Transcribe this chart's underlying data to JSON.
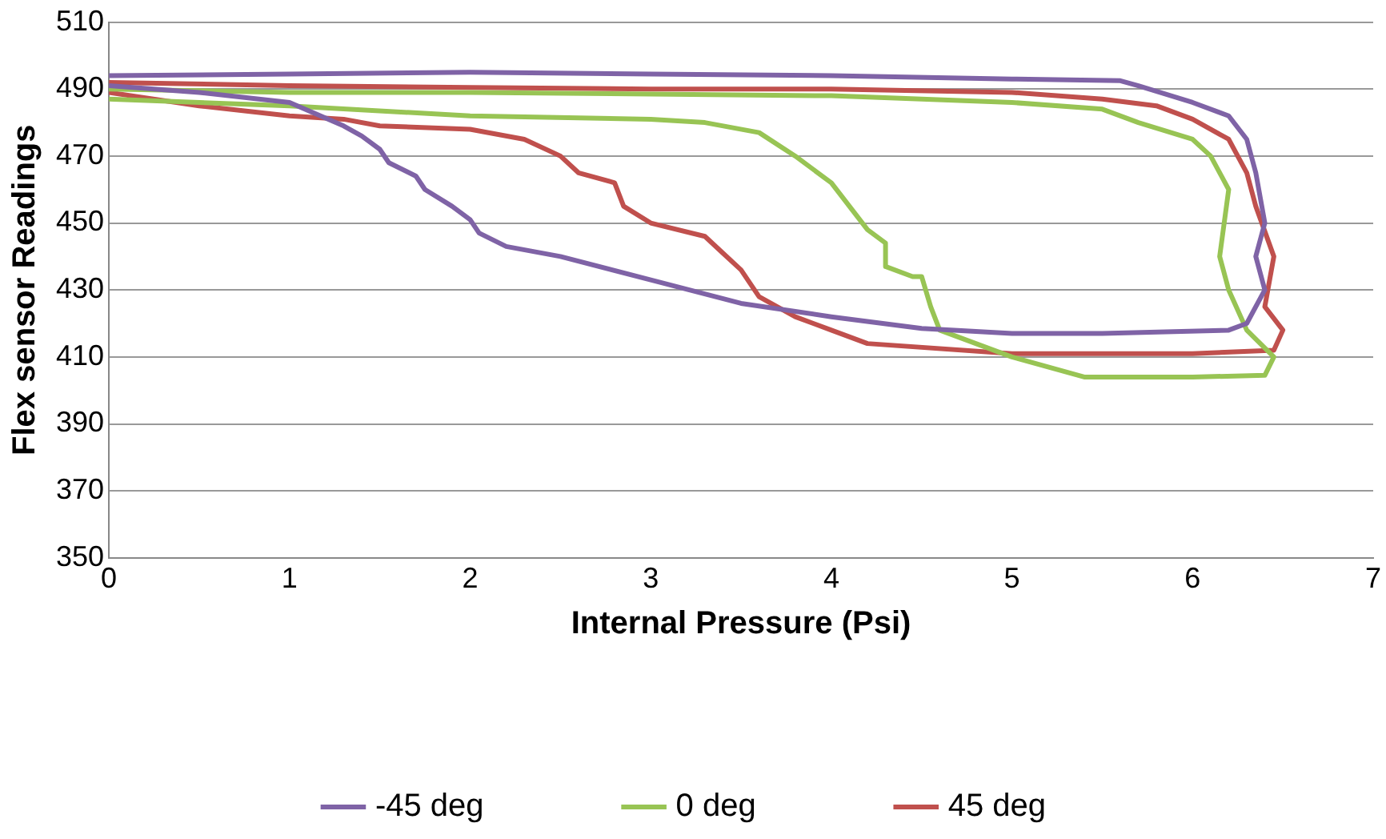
{
  "chart_data": {
    "type": "line",
    "xlabel": "Internal Pressure (Psi)",
    "ylabel": "Flex sensor Readings",
    "xlim": [
      0,
      7
    ],
    "xticks": [
      0,
      1,
      2,
      3,
      4,
      5,
      6,
      7
    ],
    "ylim": [
      350,
      510
    ],
    "yticks": [
      350,
      370,
      390,
      410,
      430,
      450,
      470,
      490,
      510
    ],
    "grid": "y",
    "legend": "bottom",
    "marker": "none",
    "line_style": "solid",
    "series": [
      {
        "name": "-45 deg",
        "color": "#7f63a6",
        "x": [
          0,
          1,
          2,
          3,
          4,
          5,
          5.6,
          5.7,
          6.0,
          6.2,
          6.3,
          6.35,
          6.4,
          6.35,
          6.4,
          6.3,
          6.2,
          5.5,
          5,
          4.5,
          4,
          3.5,
          3,
          2.5,
          2.2,
          2.05,
          2.0,
          1.9,
          1.75,
          1.7,
          1.55,
          1.5,
          1.4,
          1.3,
          1.0,
          0.5,
          0
        ],
        "values": [
          494,
          494.5,
          495,
          494.5,
          494,
          493,
          492.5,
          491,
          486,
          482,
          475,
          465,
          450,
          440,
          430,
          420,
          418,
          417,
          417,
          418.5,
          422,
          426,
          433,
          440,
          443,
          447,
          451,
          455,
          460,
          464,
          468,
          472,
          476,
          479,
          486,
          489,
          491
        ]
      },
      {
        "name": "0 deg",
        "color": "#98c454",
        "x": [
          0,
          1,
          2,
          3,
          3.3,
          3.6,
          3.8,
          4.0,
          4.1,
          4.2,
          4.3,
          4.3,
          4.45,
          4.5,
          4.55,
          4.6,
          5.0,
          5.4,
          6.0,
          6.4,
          6.45,
          6.3,
          6.2,
          6.15,
          6.2,
          6.1,
          6.0,
          5.7,
          5.5,
          5,
          4,
          3,
          2,
          1,
          0
        ],
        "values": [
          487,
          485,
          482,
          481,
          480,
          477,
          470,
          462,
          455,
          448,
          444,
          437,
          434,
          434,
          425,
          418,
          410,
          404,
          404,
          404.5,
          410,
          418,
          430,
          440,
          460,
          470,
          475,
          480,
          484,
          486,
          488,
          488.5,
          489,
          489,
          490
        ]
      },
      {
        "name": "45 deg",
        "color": "#c0504d",
        "x": [
          0,
          0.5,
          1,
          1.3,
          1.5,
          2,
          2.3,
          2.5,
          2.6,
          2.8,
          2.85,
          3.0,
          3.3,
          3.4,
          3.5,
          3.6,
          3.8,
          4.0,
          4.2,
          5,
          6,
          6.45,
          6.5,
          6.4,
          6.45,
          6.35,
          6.3,
          6.2,
          6.0,
          5.8,
          5.5,
          5,
          4,
          3,
          2,
          1,
          0
        ],
        "values": [
          489,
          485,
          482,
          481,
          479,
          478,
          475,
          470,
          465,
          462,
          455,
          450,
          446,
          441,
          436,
          428,
          422,
          418,
          414,
          411,
          411,
          412,
          418,
          425,
          440,
          455,
          465,
          475,
          481,
          485,
          487,
          489,
          490,
          490,
          490.5,
          491,
          492
        ]
      }
    ]
  }
}
